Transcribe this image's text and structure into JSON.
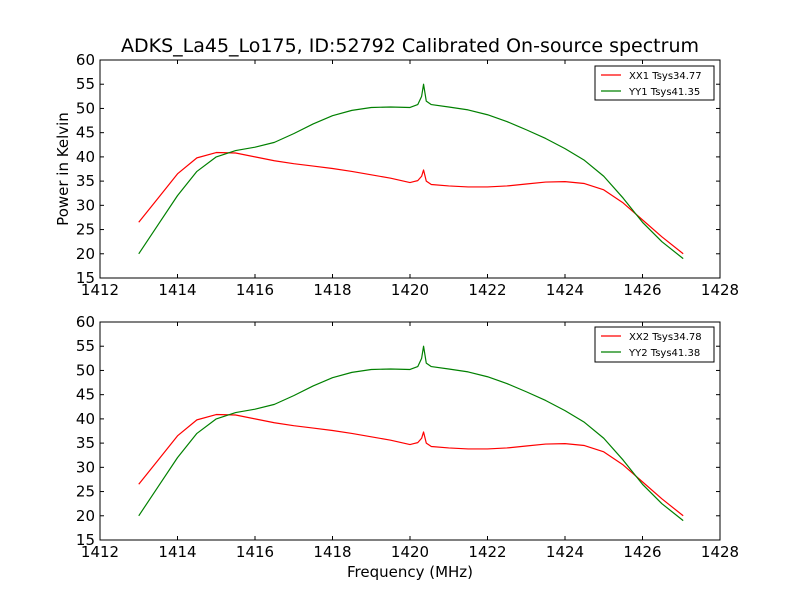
{
  "figure": {
    "title": "ADKS_La45_Lo175, ID:52792 Calibrated On-source spectrum"
  },
  "chart_data": [
    {
      "type": "line",
      "title": "ADKS_La45_Lo175, ID:52792 Calibrated On-source spectrum",
      "xlabel": "",
      "ylabel": "Power in Kelvin",
      "xlim": [
        1412,
        1428
      ],
      "ylim": [
        15,
        60
      ],
      "xticks": [
        1412,
        1414,
        1416,
        1418,
        1420,
        1422,
        1424,
        1426,
        1428
      ],
      "yticks": [
        15,
        20,
        25,
        30,
        35,
        40,
        45,
        50,
        55,
        60
      ],
      "grid": false,
      "legend_position": "top-right",
      "series": [
        {
          "name": "XX1 Tsys34.77",
          "color": "#ff0000",
          "x": [
            1413.0,
            1413.5,
            1414.0,
            1414.5,
            1415.0,
            1415.5,
            1416.0,
            1416.5,
            1417.0,
            1417.5,
            1418.0,
            1418.5,
            1419.0,
            1419.5,
            1420.0,
            1420.1,
            1420.2,
            1420.3,
            1420.35,
            1420.42,
            1420.55,
            1421.0,
            1421.5,
            1422.0,
            1422.5,
            1423.0,
            1423.5,
            1424.0,
            1424.5,
            1425.0,
            1425.5,
            1426.0,
            1426.5,
            1427.05
          ],
          "y": [
            26.5,
            31.5,
            36.5,
            39.8,
            40.9,
            40.8,
            40.0,
            39.2,
            38.6,
            38.1,
            37.6,
            37.0,
            36.3,
            35.6,
            34.7,
            34.9,
            35.1,
            36.0,
            37.3,
            35.0,
            34.3,
            34.0,
            33.8,
            33.8,
            34.0,
            34.4,
            34.8,
            34.9,
            34.5,
            33.2,
            30.5,
            27.0,
            23.5,
            20.0
          ]
        },
        {
          "name": "YY1 Tsys41.35",
          "color": "#008000",
          "x": [
            1413.0,
            1413.5,
            1414.0,
            1414.5,
            1415.0,
            1415.5,
            1416.0,
            1416.5,
            1417.0,
            1417.5,
            1418.0,
            1418.5,
            1419.0,
            1419.5,
            1420.0,
            1420.2,
            1420.3,
            1420.35,
            1420.42,
            1420.55,
            1421.0,
            1421.5,
            1422.0,
            1422.5,
            1423.0,
            1423.5,
            1424.0,
            1424.5,
            1425.0,
            1425.5,
            1426.0,
            1426.5,
            1427.05
          ],
          "y": [
            20.0,
            26.0,
            32.0,
            37.0,
            40.0,
            41.3,
            42.0,
            43.0,
            44.8,
            46.8,
            48.5,
            49.6,
            50.2,
            50.3,
            50.2,
            50.8,
            52.5,
            55.0,
            51.5,
            50.8,
            50.3,
            49.7,
            48.7,
            47.3,
            45.6,
            43.8,
            41.7,
            39.3,
            36.0,
            31.5,
            26.5,
            22.5,
            19.0
          ]
        }
      ]
    },
    {
      "type": "line",
      "title": "",
      "xlabel": "Frequency (MHz)",
      "ylabel": "",
      "xlim": [
        1412,
        1428
      ],
      "ylim": [
        15,
        60
      ],
      "xticks": [
        1412,
        1414,
        1416,
        1418,
        1420,
        1422,
        1424,
        1426,
        1428
      ],
      "yticks": [
        15,
        20,
        25,
        30,
        35,
        40,
        45,
        50,
        55,
        60
      ],
      "grid": false,
      "legend_position": "top-right",
      "series": [
        {
          "name": "XX2 Tsys34.78",
          "color": "#ff0000",
          "x": [
            1413.0,
            1413.5,
            1414.0,
            1414.5,
            1415.0,
            1415.5,
            1416.0,
            1416.5,
            1417.0,
            1417.5,
            1418.0,
            1418.5,
            1419.0,
            1419.5,
            1420.0,
            1420.1,
            1420.2,
            1420.3,
            1420.35,
            1420.42,
            1420.55,
            1421.0,
            1421.5,
            1422.0,
            1422.5,
            1423.0,
            1423.5,
            1424.0,
            1424.5,
            1425.0,
            1425.5,
            1426.0,
            1426.5,
            1427.05
          ],
          "y": [
            26.5,
            31.5,
            36.5,
            39.8,
            40.9,
            40.8,
            40.0,
            39.2,
            38.6,
            38.1,
            37.6,
            37.0,
            36.3,
            35.6,
            34.7,
            34.9,
            35.1,
            36.0,
            37.3,
            35.0,
            34.3,
            34.0,
            33.8,
            33.8,
            34.0,
            34.4,
            34.8,
            34.9,
            34.5,
            33.2,
            30.5,
            27.0,
            23.5,
            20.0
          ]
        },
        {
          "name": "YY2 Tsys41.38",
          "color": "#008000",
          "x": [
            1413.0,
            1413.5,
            1414.0,
            1414.5,
            1415.0,
            1415.5,
            1416.0,
            1416.5,
            1417.0,
            1417.5,
            1418.0,
            1418.5,
            1419.0,
            1419.5,
            1420.0,
            1420.2,
            1420.3,
            1420.35,
            1420.42,
            1420.55,
            1421.0,
            1421.5,
            1422.0,
            1422.5,
            1423.0,
            1423.5,
            1424.0,
            1424.5,
            1425.0,
            1425.5,
            1426.0,
            1426.5,
            1427.05
          ],
          "y": [
            20.0,
            26.0,
            32.0,
            37.0,
            40.0,
            41.3,
            42.0,
            43.0,
            44.8,
            46.8,
            48.5,
            49.6,
            50.2,
            50.3,
            50.2,
            50.8,
            52.5,
            55.0,
            51.5,
            50.8,
            50.3,
            49.7,
            48.7,
            47.3,
            45.6,
            43.8,
            41.7,
            39.3,
            36.0,
            31.5,
            26.5,
            22.5,
            19.0
          ]
        }
      ]
    }
  ]
}
